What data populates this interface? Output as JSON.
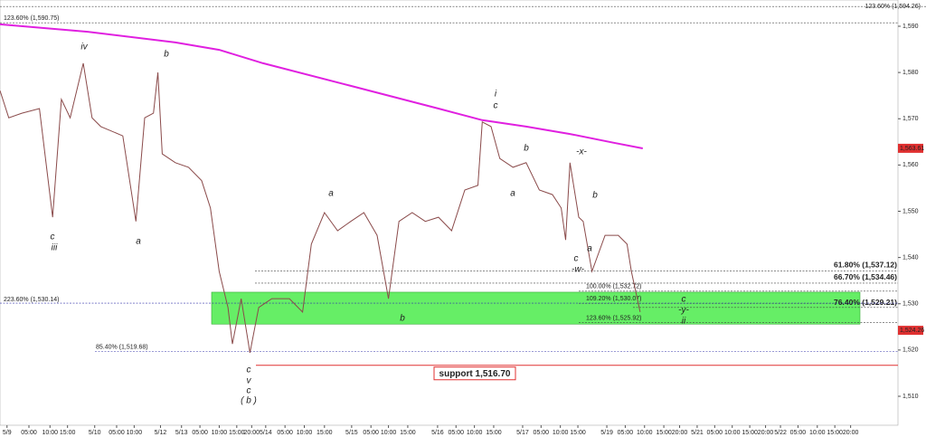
{
  "chart_data": {
    "type": "line",
    "xlim": [
      0,
      204.8
    ],
    "ylim": [
      1503.74,
      1595.67
    ],
    "yticks": [
      {
        "value": 1510,
        "label": "1,510"
      },
      {
        "value": 1520,
        "label": "1,520"
      },
      {
        "value": 1530,
        "label": "1,530"
      },
      {
        "value": 1540,
        "label": "1,540"
      },
      {
        "value": 1550,
        "label": "1,550"
      },
      {
        "value": 1560,
        "label": "1,560"
      },
      {
        "value": 1570,
        "label": "1,570"
      },
      {
        "value": 1580,
        "label": "1,580"
      },
      {
        "value": 1590,
        "label": "1,590"
      }
    ],
    "xticks": [
      {
        "value": 1.6,
        "label": "5/9"
      },
      {
        "value": 6.6,
        "label": "05:00"
      },
      {
        "value": 11.4,
        "label": "10:00"
      },
      {
        "value": 15.4,
        "label": "15:00"
      },
      {
        "value": 21.6,
        "label": "5/10"
      },
      {
        "value": 26.6,
        "label": "05:00"
      },
      {
        "value": 30.6,
        "label": "10:00"
      },
      {
        "value": 36.6,
        "label": "5/12"
      },
      {
        "value": 41.4,
        "label": "5/13"
      },
      {
        "value": 45.6,
        "label": "05:00"
      },
      {
        "value": 50,
        "label": "10:00"
      },
      {
        "value": 54,
        "label": "15:00"
      },
      {
        "value": 57.4,
        "label": "20:00"
      },
      {
        "value": 60.6,
        "label": "5/14"
      },
      {
        "value": 65,
        "label": "05:00"
      },
      {
        "value": 69.4,
        "label": "10:00"
      },
      {
        "value": 74,
        "label": "15:00"
      },
      {
        "value": 80.2,
        "label": "5/15"
      },
      {
        "value": 84.6,
        "label": "05:00"
      },
      {
        "value": 88.6,
        "label": "10:00"
      },
      {
        "value": 93,
        "label": "15:00"
      },
      {
        "value": 99.8,
        "label": "5/16"
      },
      {
        "value": 104,
        "label": "05:00"
      },
      {
        "value": 108.2,
        "label": "10:00"
      },
      {
        "value": 112.6,
        "label": "15:00"
      },
      {
        "value": 119.2,
        "label": "5/17"
      },
      {
        "value": 123.4,
        "label": "05:00"
      },
      {
        "value": 127.8,
        "label": "10:00"
      },
      {
        "value": 131.8,
        "label": "15:00"
      },
      {
        "value": 138.4,
        "label": "5/19"
      },
      {
        "value": 142.6,
        "label": "05:00"
      },
      {
        "value": 147,
        "label": "10:00"
      },
      {
        "value": 151.4,
        "label": "15:00"
      },
      {
        "value": 155,
        "label": "20:00"
      },
      {
        "value": 159,
        "label": "5/21"
      },
      {
        "value": 163,
        "label": "05:00"
      },
      {
        "value": 167,
        "label": "10:00"
      },
      {
        "value": 171,
        "label": "15:00"
      },
      {
        "value": 174.6,
        "label": "20:00"
      },
      {
        "value": 178,
        "label": "5/22"
      },
      {
        "value": 182,
        "label": "05:00"
      },
      {
        "value": 186.4,
        "label": "10:00"
      },
      {
        "value": 190.4,
        "label": "15:00"
      },
      {
        "value": 194,
        "label": "20:00"
      }
    ],
    "series": [
      {
        "color": "#8a4a4a",
        "x": [
          0,
          2,
          5,
          9,
          12,
          14,
          16,
          19,
          21,
          23,
          28,
          31,
          33,
          35,
          36,
          37,
          40,
          43,
          46,
          48,
          50,
          52,
          53,
          55,
          57,
          59,
          62,
          66,
          69,
          71,
          74,
          77,
          80,
          83,
          86,
          88.6,
          91,
          94,
          97,
          100,
          103,
          106,
          109,
          110,
          112,
          114,
          117,
          120,
          123,
          126,
          128,
          129,
          130,
          132,
          133,
          135,
          138,
          141,
          143,
          144,
          146
        ],
        "values": [
          1576.1,
          1570.2,
          1571.2,
          1572.2,
          1548.7,
          1574.2,
          1570.2,
          1582.0,
          1570.2,
          1568.3,
          1566.3,
          1547.8,
          1570.2,
          1571.2,
          1580.0,
          1562.4,
          1560.5,
          1559.5,
          1556.6,
          1550.7,
          1537.0,
          1529.2,
          1521.3,
          1531.1,
          1519.4,
          1529.2,
          1531.1,
          1531.1,
          1528.2,
          1542.9,
          1549.7,
          1545.8,
          1547.8,
          1549.7,
          1544.8,
          1531.1,
          1547.8,
          1549.7,
          1547.8,
          1548.7,
          1545.8,
          1554.6,
          1555.6,
          1569.3,
          1568.3,
          1561.4,
          1559.5,
          1560.5,
          1554.6,
          1553.6,
          1550.7,
          1543.8,
          1560.5,
          1548.7,
          1547.8,
          1537.0,
          1544.8,
          1544.8,
          1542.9,
          1537.0,
          1528.2
        ]
      },
      {
        "color": "#e020e0",
        "x": [
          0,
          20,
          40,
          50,
          60,
          80,
          100,
          110,
          120,
          130,
          140,
          146.6
        ],
        "values": [
          1590.4,
          1588.8,
          1586.5,
          1584.9,
          1582.0,
          1577.1,
          1572.2,
          1569.7,
          1568.3,
          1566.7,
          1564.8,
          1563.6
        ]
      }
    ],
    "zone": {
      "low": 1525.6,
      "high": 1532.5,
      "color": "#66ee66"
    },
    "levels": [
      {
        "label": "123.60% (1,594.26)",
        "value": 1594.26,
        "color": "#444"
      },
      {
        "label": "123.60% (1,590.75)",
        "value": 1590.75,
        "color": "#444"
      },
      {
        "label": "61.80% (1,537.12)",
        "value": 1537.12,
        "color": "#444"
      },
      {
        "label": "66.70% (1,534.46)",
        "value": 1534.46,
        "color": "#444"
      },
      {
        "label": "100.00% (1,532.72)",
        "value": 1532.72,
        "color": "#444"
      },
      {
        "label": "109.20% (1,530.07)",
        "value": 1530.07,
        "color": "#444"
      },
      {
        "label": "76.40% (1,529.21)",
        "value": 1529.21,
        "color": "#444"
      },
      {
        "label": "123.60% (1,525.92)",
        "value": 1525.92,
        "color": "#444"
      },
      {
        "label": "223.60% (1,530.14)",
        "value": 1530.14,
        "color": "#3333aa"
      },
      {
        "label": "85.40% (1,519.68)",
        "value": 1519.68,
        "color": "#3333aa"
      }
    ],
    "support": {
      "label": "support 1,516.70",
      "value": 1516.7,
      "color": "#e03030"
    },
    "price_tags": [
      {
        "value": 1563.61,
        "label": "1,563.61"
      },
      {
        "value": 1524.26,
        "label": "1,524.26"
      }
    ],
    "waves": [
      "iv",
      "b",
      "c",
      "iii",
      "a",
      "c",
      "v",
      "c",
      "( b )",
      "a",
      "b",
      "i",
      "c",
      "b",
      "a",
      "-x-",
      "b",
      "a",
      "c",
      "-w-",
      "c",
      "-y-",
      "ii"
    ]
  }
}
